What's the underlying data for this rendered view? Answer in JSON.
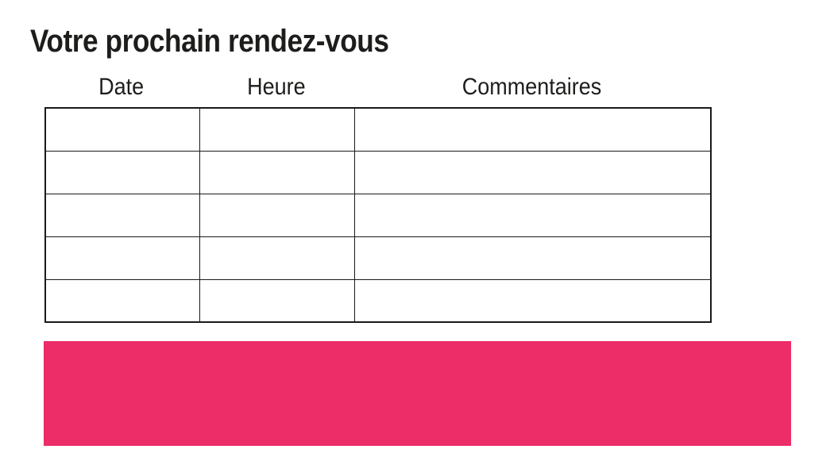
{
  "slide": {
    "title": "Votre prochain rendez-vous"
  },
  "table": {
    "headers": [
      "Date",
      "Heure",
      "Commentaires"
    ],
    "rows": [
      [
        "",
        "",
        ""
      ],
      [
        "",
        "",
        ""
      ],
      [
        "",
        "",
        ""
      ],
      [
        "",
        "",
        ""
      ],
      [
        "",
        "",
        ""
      ]
    ]
  },
  "banner": {
    "label": ""
  },
  "colors": {
    "accent_pink": "#ED2D68",
    "text": "#1D1D1B",
    "table_border": "#1A1A1A",
    "background": "#FFFFFF"
  }
}
